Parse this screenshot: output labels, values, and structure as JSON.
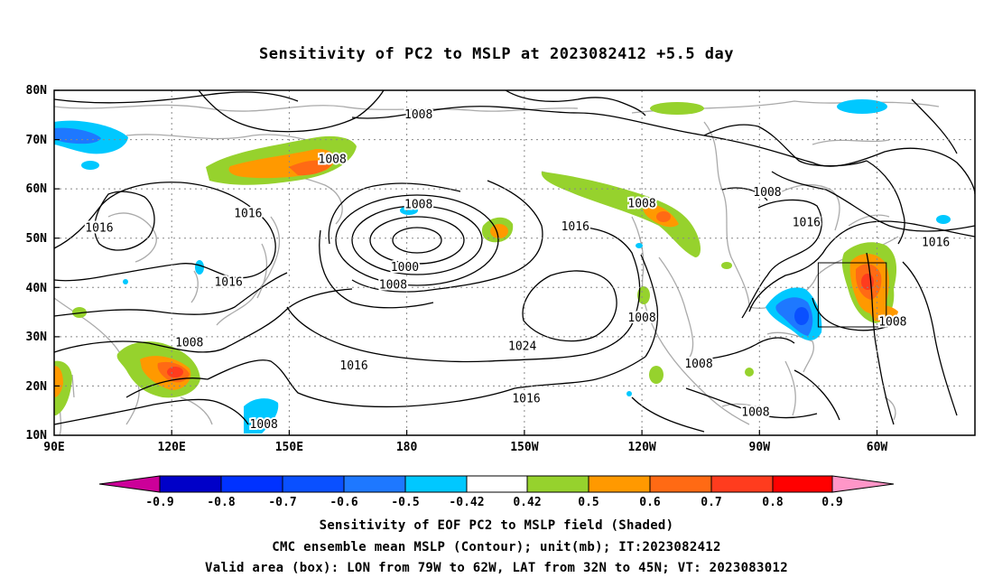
{
  "title": "Sensitivity of PC2 to MSLP at 2023082412 +5.5 day",
  "map": {
    "lon_labels": [
      "90E",
      "120E",
      "150E",
      "180",
      "150W",
      "120W",
      "90W",
      "60W"
    ],
    "lat_labels": [
      "80N",
      "70N",
      "60N",
      "50N",
      "40N",
      "30N",
      "20N",
      "10N"
    ],
    "extent": {
      "lon_min": 90,
      "lon_max": 325,
      "lat_min": 10,
      "lat_max": 80
    },
    "gridlines": "dotted",
    "contour_labels": [
      {
        "text": "1008",
        "lon": 183,
        "lat": 75.2
      },
      {
        "text": "1008",
        "lon": 161,
        "lat": 66.2
      },
      {
        "text": "1008",
        "lon": 272,
        "lat": 59.5
      },
      {
        "text": "1008",
        "lon": 240,
        "lat": 57.2
      },
      {
        "text": "1008",
        "lon": 183,
        "lat": 57.0
      },
      {
        "text": "1016",
        "lon": 101.5,
        "lat": 52.2
      },
      {
        "text": "1016",
        "lon": 139.5,
        "lat": 55.2
      },
      {
        "text": "1016",
        "lon": 223,
        "lat": 52.5
      },
      {
        "text": "1016",
        "lon": 282,
        "lat": 53.3
      },
      {
        "text": "1016",
        "lon": 315,
        "lat": 49.3
      },
      {
        "text": "1016",
        "lon": 134.5,
        "lat": 41.2
      },
      {
        "text": "1000",
        "lon": 179.5,
        "lat": 44.3
      },
      {
        "text": "1008",
        "lon": 176.5,
        "lat": 40.7
      },
      {
        "text": "1008",
        "lon": 304,
        "lat": 33.2
      },
      {
        "text": "1008",
        "lon": 240,
        "lat": 34.0
      },
      {
        "text": "1024",
        "lon": 209.5,
        "lat": 28.2
      },
      {
        "text": "1008",
        "lon": 124.5,
        "lat": 29.0
      },
      {
        "text": "1016",
        "lon": 166.5,
        "lat": 24.3
      },
      {
        "text": "1016",
        "lon": 210.5,
        "lat": 17.6
      },
      {
        "text": "1008",
        "lon": 254.5,
        "lat": 24.7
      },
      {
        "text": "1008",
        "lon": 269,
        "lat": 14.9
      },
      {
        "text": "1008",
        "lon": 143.5,
        "lat": 12.4
      }
    ],
    "valid_box": {
      "lon_west": -79,
      "lon_east": -62,
      "lat_south": 32,
      "lat_north": 45
    }
  },
  "colorbar": {
    "labels": [
      "-0.9",
      "-0.8",
      "-0.7",
      "-0.6",
      "-0.5",
      "-0.42",
      "0.42",
      "0.5",
      "0.6",
      "0.7",
      "0.8",
      "0.9"
    ],
    "colors": [
      "#cc0099",
      "#0000c8",
      "#0032ff",
      "#0a50ff",
      "#1e78ff",
      "#00c8ff",
      "#ffffff",
      "#96d22d",
      "#ff9900",
      "#ff6a14",
      "#ff3c1e",
      "#ff0000",
      "#ff96c8"
    ]
  },
  "captions": {
    "line1": "Sensitivity of EOF PC2 to MSLP field (Shaded)",
    "line2": "CMC ensemble mean MSLP (Contour); unit(mb); IT:2023082412",
    "line3": "Valid area (box): LON from 79W to 62W, LAT from 32N to 45N; VT: 2023083012"
  }
}
